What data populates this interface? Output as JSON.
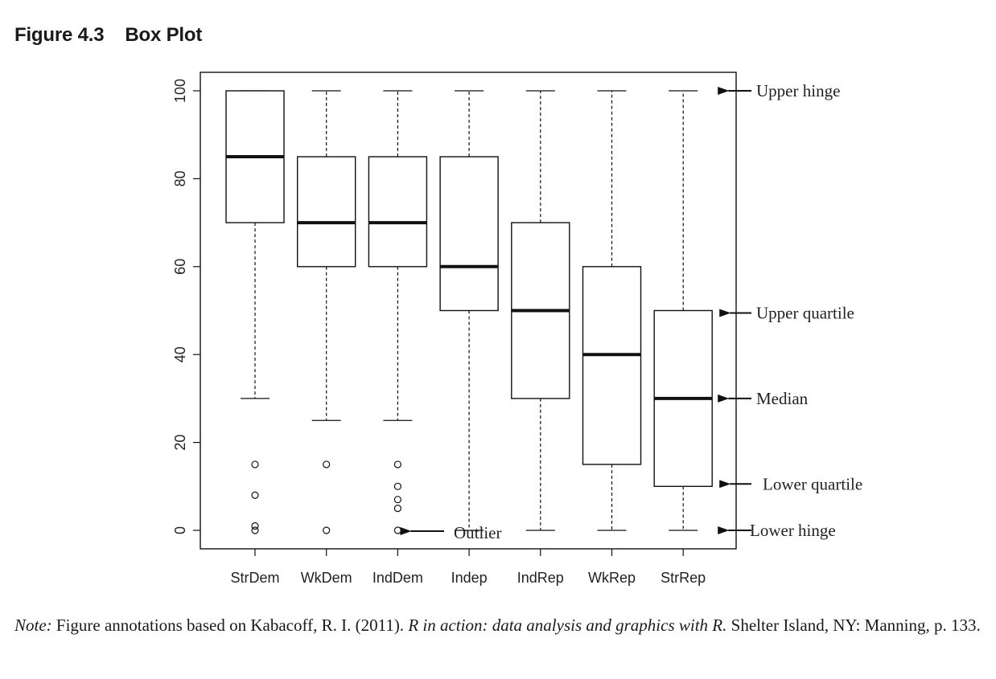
{
  "figure": {
    "number": "Figure 4.3",
    "title": "Box Plot"
  },
  "chart_data": {
    "type": "box",
    "ylim": [
      0,
      100
    ],
    "yticks": [
      0,
      20,
      40,
      60,
      80,
      100
    ],
    "grid": false,
    "categories": [
      "StrDem",
      "WkDem",
      "IndDem",
      "Indep",
      "IndRep",
      "WkRep",
      "StrRep"
    ],
    "boxes": [
      {
        "name": "StrDem",
        "lower_whisker": 30,
        "q1": 70,
        "median": 85,
        "q3": 100,
        "upper_whisker": 100,
        "outliers": [
          15,
          8,
          1,
          0
        ]
      },
      {
        "name": "WkDem",
        "lower_whisker": 25,
        "q1": 60,
        "median": 70,
        "q3": 85,
        "upper_whisker": 100,
        "outliers": [
          15,
          0
        ]
      },
      {
        "name": "IndDem",
        "lower_whisker": 25,
        "q1": 60,
        "median": 70,
        "q3": 85,
        "upper_whisker": 100,
        "outliers": [
          15,
          10,
          7,
          5,
          0
        ]
      },
      {
        "name": "Indep",
        "lower_whisker": 0,
        "q1": 50,
        "median": 60,
        "q3": 85,
        "upper_whisker": 100,
        "outliers": []
      },
      {
        "name": "IndRep",
        "lower_whisker": 0,
        "q1": 30,
        "median": 50,
        "q3": 70,
        "upper_whisker": 100,
        "outliers": []
      },
      {
        "name": "WkRep",
        "lower_whisker": 0,
        "q1": 15,
        "median": 40,
        "q3": 60,
        "upper_whisker": 100,
        "outliers": []
      },
      {
        "name": "StrRep",
        "lower_whisker": 0,
        "q1": 10,
        "median": 30,
        "q3": 50,
        "upper_whisker": 100,
        "outliers": []
      }
    ],
    "annotations": [
      {
        "label": "Upper hinge",
        "value": 100
      },
      {
        "label": "Upper quartile",
        "value": 50
      },
      {
        "label": "Median",
        "value": 30
      },
      {
        "label": "Lower quartile",
        "value": 10
      },
      {
        "label": "Lower hinge",
        "value": 0
      },
      {
        "label": "Outlier",
        "value": 0,
        "category": "IndDem"
      }
    ]
  },
  "note": {
    "label": "Note:",
    "text_before": " Figure annotations based on Kabacoff, R. I. (2011). ",
    "book_title": "R in action: data analysis and graphics with R.",
    "text_after": " Shelter Island, NY: Manning, p. 133."
  }
}
